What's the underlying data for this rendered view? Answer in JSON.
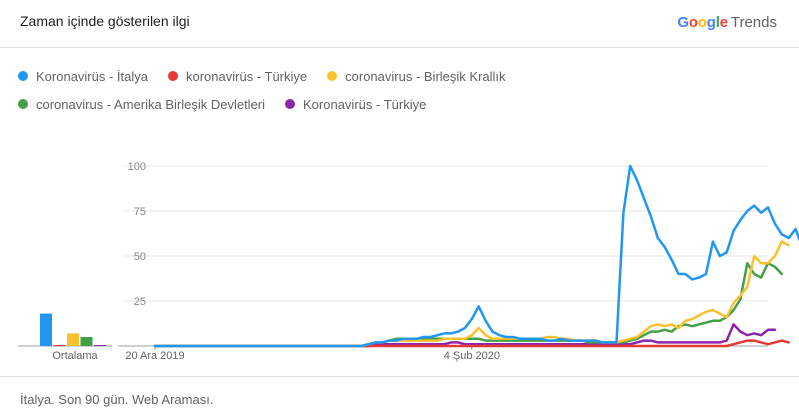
{
  "header": {
    "title": "Zaman içinde gösterilen ilgi",
    "logo_letters": [
      {
        "ch": "G",
        "color": "#4285f4"
      },
      {
        "ch": "o",
        "color": "#ea4335"
      },
      {
        "ch": "o",
        "color": "#fbbc05"
      },
      {
        "ch": "g",
        "color": "#4285f4"
      },
      {
        "ch": "l",
        "color": "#34a853"
      },
      {
        "ch": "e",
        "color": "#ea4335"
      }
    ],
    "logo_suffix": "Trends"
  },
  "footer": {
    "text": "İtalya. Son 90 gün. Web Araması."
  },
  "chart_data": {
    "type": "line",
    "title": "",
    "xlabel": "",
    "ylabel": "",
    "ylim": [
      0,
      100
    ],
    "yticks": [
      25,
      50,
      75,
      100
    ],
    "xtick_labels": [
      {
        "label": "20 Ara 2019",
        "index": 0
      },
      {
        "label": "4 Şub 2020",
        "index": 46
      }
    ],
    "average_label": "Ortalama",
    "grid": true,
    "legend_position": "top-left",
    "n_points": 90,
    "series": [
      {
        "name": "Koronavirüs - İtalya",
        "color": "#2196f3",
        "average": 18,
        "values": [
          0,
          0,
          0,
          0,
          0,
          0,
          0,
          0,
          0,
          0,
          0,
          0,
          0,
          0,
          0,
          0,
          0,
          0,
          0,
          0,
          0,
          0,
          0,
          0,
          0,
          0,
          0,
          0,
          0,
          0,
          0,
          1,
          2,
          2,
          3,
          3,
          4,
          4,
          4,
          5,
          5,
          6,
          7,
          7,
          8,
          10,
          15,
          22,
          14,
          8,
          6,
          5,
          5,
          4,
          4,
          4,
          4,
          3,
          3,
          4,
          3,
          3,
          3,
          3,
          3,
          2,
          2,
          2,
          74,
          100,
          92,
          82,
          72,
          60,
          55,
          48,
          40,
          40,
          37,
          38,
          40,
          58,
          50,
          52,
          64,
          70,
          75,
          78,
          74,
          77,
          68,
          62,
          60,
          65,
          55,
          54
        ]
      },
      {
        "name": "koronavirüs - Türkiye",
        "color": "#e53935",
        "average": 0,
        "values": [
          0,
          0,
          0,
          0,
          0,
          0,
          0,
          0,
          0,
          0,
          0,
          0,
          0,
          0,
          0,
          0,
          0,
          0,
          0,
          0,
          0,
          0,
          0,
          0,
          0,
          0,
          0,
          0,
          0,
          0,
          0,
          0,
          0,
          0,
          0,
          0,
          0,
          0,
          0,
          0,
          0,
          0,
          0,
          0,
          0,
          0,
          0,
          0,
          0,
          0,
          0,
          0,
          0,
          0,
          0,
          0,
          0,
          0,
          0,
          0,
          0,
          0,
          0,
          0,
          0,
          0,
          0,
          0,
          0,
          0,
          0,
          0,
          0,
          0,
          0,
          0,
          0,
          0,
          0,
          0,
          0,
          0,
          0,
          0,
          1,
          2,
          3,
          3,
          2,
          1,
          2,
          3,
          2
        ]
      },
      {
        "name": "coronavirus - Birleşik Krallık",
        "color": "#fbc02d",
        "average": 7,
        "values": [
          0,
          0,
          0,
          0,
          0,
          0,
          0,
          0,
          0,
          0,
          0,
          0,
          0,
          0,
          0,
          0,
          0,
          0,
          0,
          0,
          0,
          0,
          0,
          0,
          0,
          0,
          0,
          0,
          0,
          0,
          0,
          1,
          2,
          2,
          3,
          3,
          3,
          3,
          3,
          3,
          3,
          3,
          4,
          4,
          4,
          4,
          6,
          10,
          6,
          4,
          4,
          4,
          4,
          4,
          4,
          4,
          4,
          5,
          5,
          4,
          4,
          3,
          3,
          3,
          3,
          2,
          2,
          2,
          3,
          4,
          5,
          8,
          11,
          12,
          11,
          12,
          10,
          14,
          15,
          17,
          19,
          20,
          18,
          16,
          24,
          28,
          33,
          50,
          46,
          46,
          50,
          58,
          56
        ]
      },
      {
        "name": "coronavirus - Amerika Birleşik Devletleri",
        "color": "#43a047",
        "average": 5,
        "values": [
          0,
          0,
          0,
          0,
          0,
          0,
          0,
          0,
          0,
          0,
          0,
          0,
          0,
          0,
          0,
          0,
          0,
          0,
          0,
          0,
          0,
          0,
          0,
          0,
          0,
          0,
          0,
          0,
          0,
          0,
          0,
          1,
          2,
          2,
          3,
          4,
          4,
          4,
          4,
          4,
          4,
          4,
          4,
          4,
          4,
          4,
          4,
          4,
          3,
          3,
          3,
          3,
          3,
          3,
          3,
          3,
          3,
          3,
          3,
          3,
          3,
          3,
          3,
          2,
          2,
          2,
          2,
          2,
          2,
          3,
          4,
          6,
          8,
          8,
          9,
          8,
          11,
          12,
          11,
          12,
          13,
          14,
          14,
          16,
          20,
          26,
          46,
          40,
          38,
          46,
          44,
          40
        ]
      },
      {
        "name": "Koronavirüs - Türkiye",
        "color": "#8e24aa",
        "average": 0.5,
        "values": [
          0,
          0,
          0,
          0,
          0,
          0,
          0,
          0,
          0,
          0,
          0,
          0,
          0,
          0,
          0,
          0,
          0,
          0,
          0,
          0,
          0,
          0,
          0,
          0,
          0,
          0,
          0,
          0,
          0,
          0,
          0,
          0,
          1,
          1,
          1,
          1,
          1,
          1,
          1,
          1,
          1,
          1,
          1,
          2,
          2,
          1,
          1,
          1,
          1,
          1,
          1,
          1,
          1,
          1,
          1,
          1,
          1,
          1,
          1,
          1,
          1,
          1,
          1,
          1,
          1,
          1,
          1,
          1,
          1,
          1,
          2,
          3,
          3,
          2,
          2,
          2,
          2,
          2,
          2,
          2,
          2,
          2,
          2,
          3,
          12,
          8,
          6,
          7,
          6,
          9,
          9
        ]
      }
    ]
  }
}
